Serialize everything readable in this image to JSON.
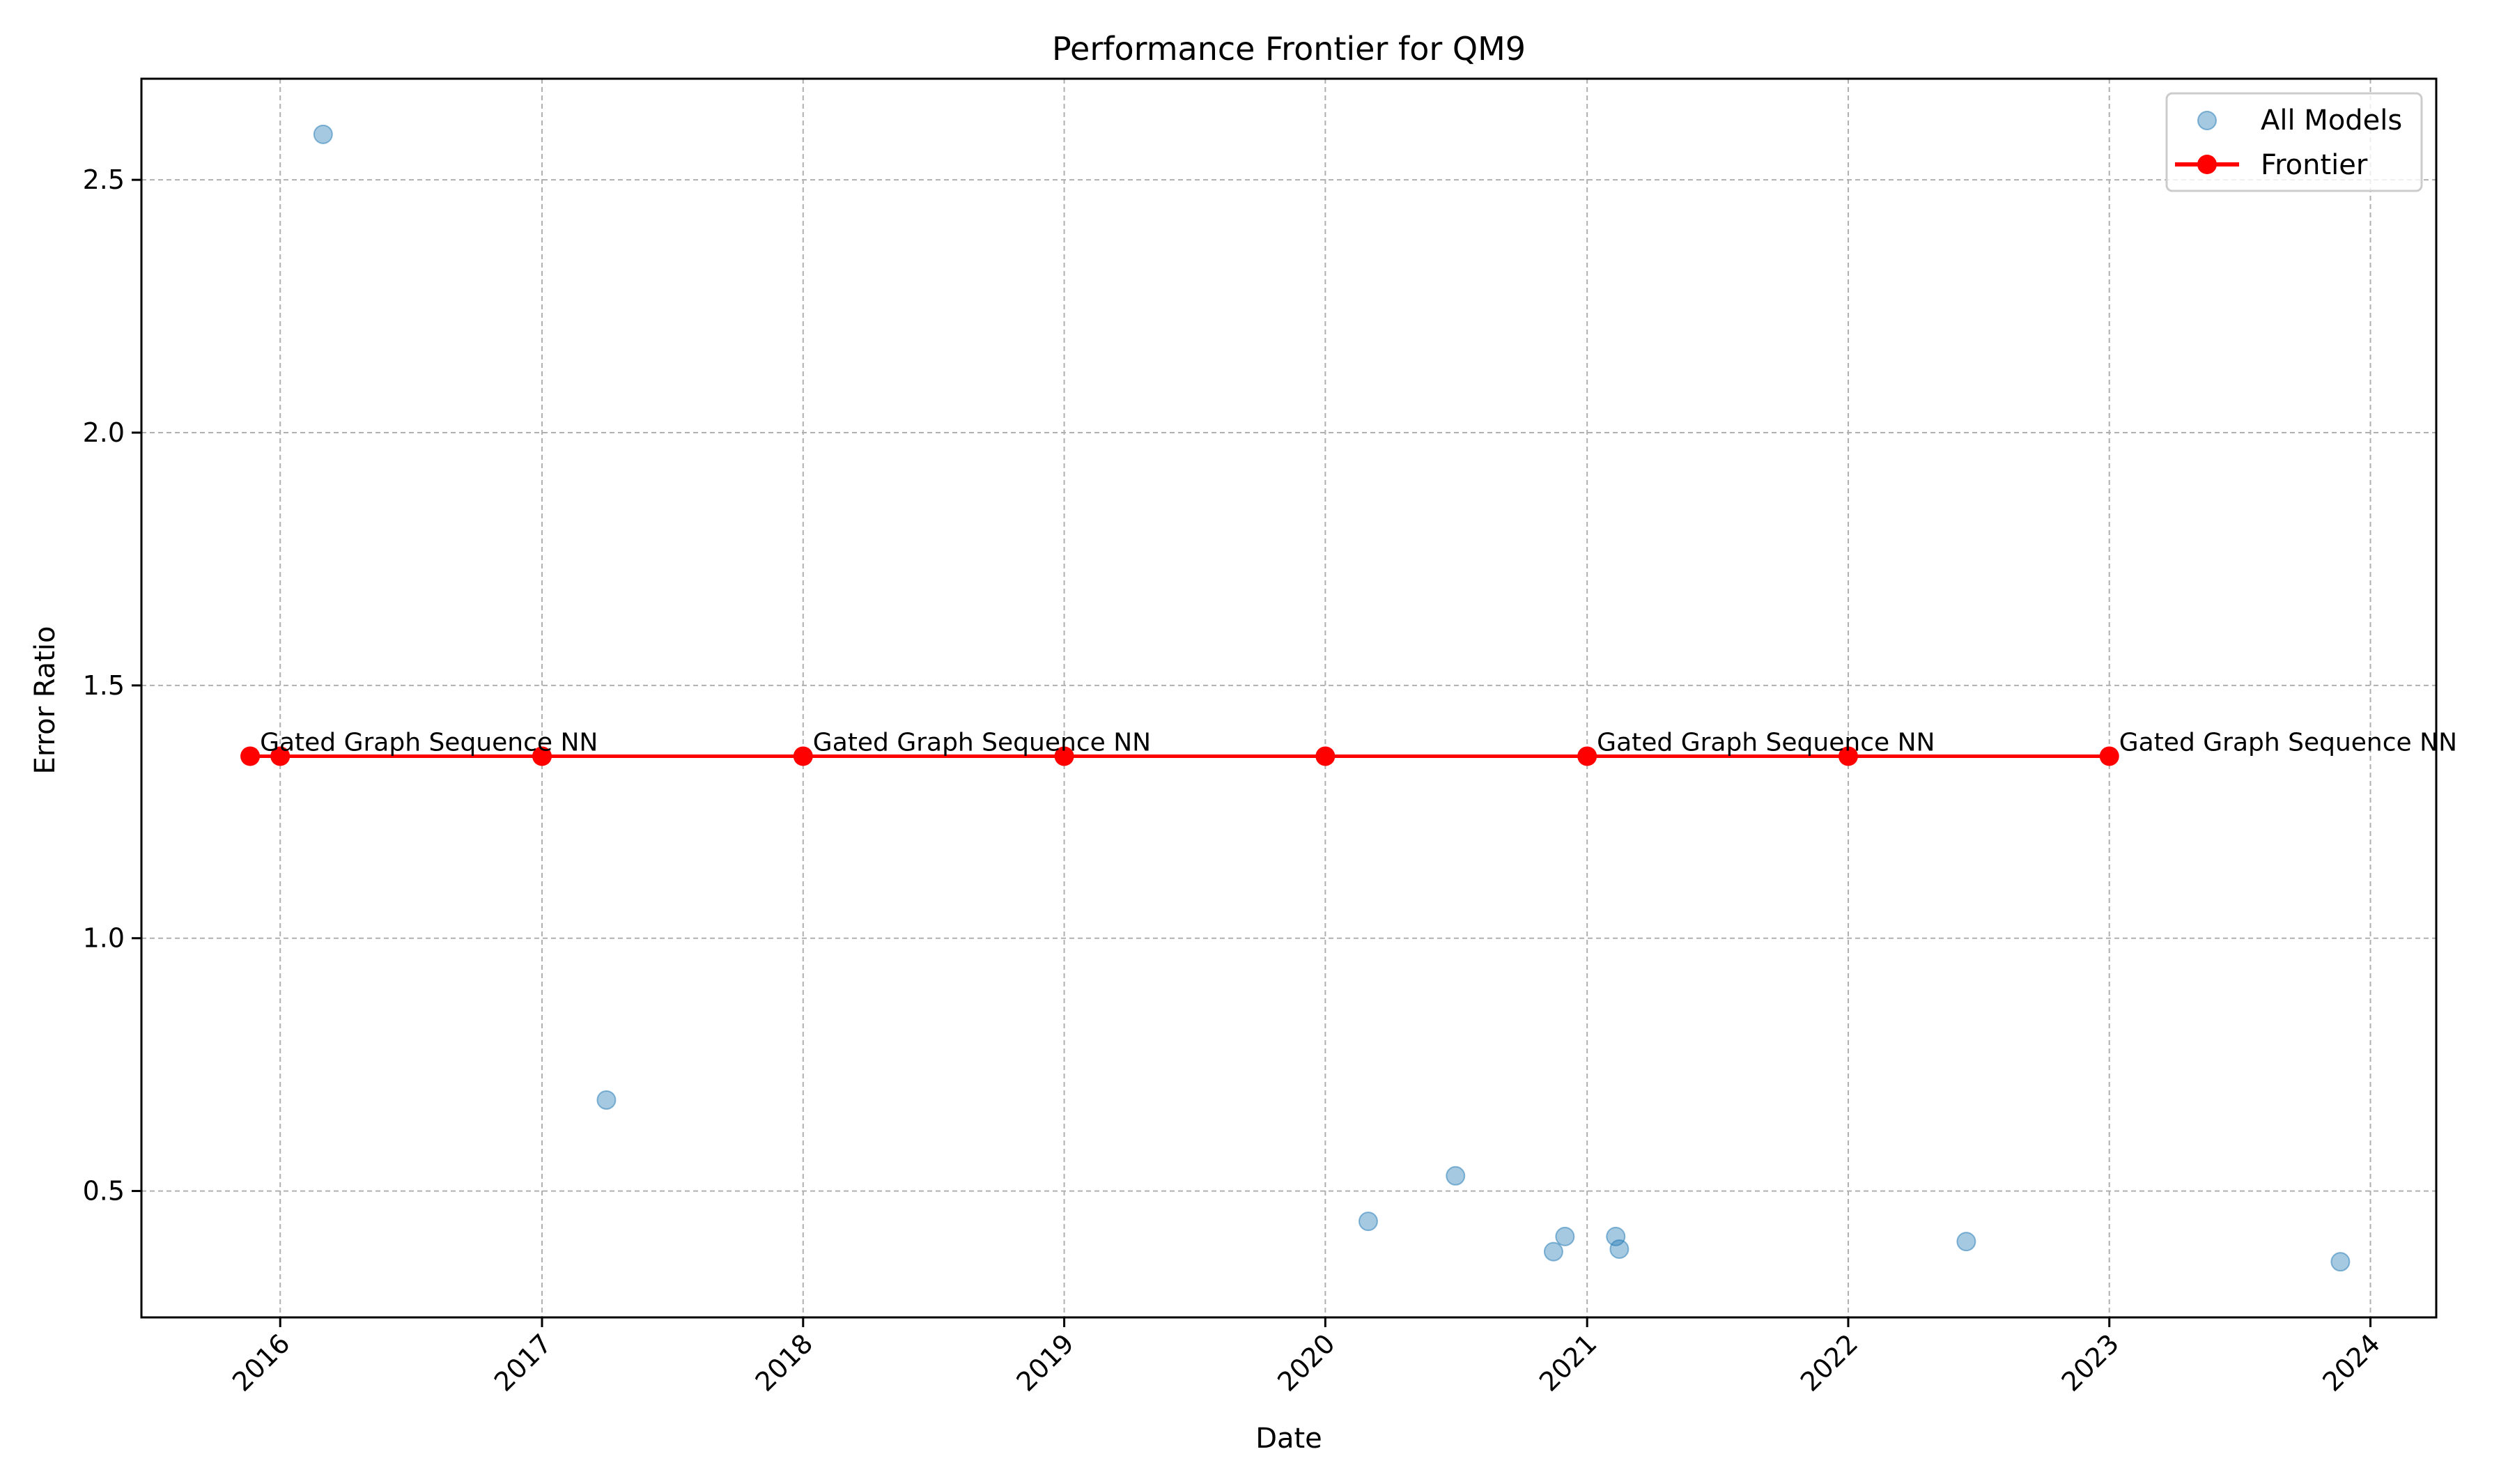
{
  "chart_data": {
    "type": "scatter",
    "title": "Performance Frontier for QM9",
    "xlabel": "Date",
    "ylabel": "Error Ratio",
    "xlim": [
      "2015-06-21",
      "2024-04-02"
    ],
    "ylim": [
      0.25,
      2.7
    ],
    "grid": true,
    "legend_position": "top-right",
    "x_ticks": [
      "2016",
      "2017",
      "2018",
      "2019",
      "2020",
      "2021",
      "2022",
      "2023",
      "2024"
    ],
    "y_ticks": [
      "0.5",
      "1.0",
      "1.5",
      "2.0",
      "2.5"
    ],
    "series": [
      {
        "name": "All Models",
        "kind": "scatter",
        "color": "#1f77b4",
        "points": [
          {
            "x": "2016-03-01",
            "y": 2.59
          },
          {
            "x": "2017-04-01",
            "y": 0.68
          },
          {
            "x": "2020-03-01",
            "y": 0.44
          },
          {
            "x": "2020-07-01",
            "y": 0.53
          },
          {
            "x": "2020-11-15",
            "y": 0.38
          },
          {
            "x": "2020-12-01",
            "y": 0.41
          },
          {
            "x": "2021-02-10",
            "y": 0.41
          },
          {
            "x": "2021-02-15",
            "y": 0.385
          },
          {
            "x": "2022-06-15",
            "y": 0.4
          },
          {
            "x": "2023-11-20",
            "y": 0.36
          }
        ]
      },
      {
        "name": "Frontier",
        "kind": "line",
        "color": "#ff0000",
        "points": [
          {
            "x": "2015-11-20",
            "y": 1.36
          },
          {
            "x": "2016-01-01",
            "y": 1.36
          },
          {
            "x": "2017-01-01",
            "y": 1.36
          },
          {
            "x": "2018-01-01",
            "y": 1.36
          },
          {
            "x": "2019-01-01",
            "y": 1.36
          },
          {
            "x": "2020-01-01",
            "y": 1.36
          },
          {
            "x": "2021-01-01",
            "y": 1.36
          },
          {
            "x": "2022-01-01",
            "y": 1.36
          },
          {
            "x": "2023-01-01",
            "y": 1.36
          }
        ]
      }
    ],
    "annotations": [
      {
        "text": "Gated Graph Sequence NN",
        "x": "2015-11-20",
        "y": 1.36
      },
      {
        "text": "Gated Graph Sequence NN",
        "x": "2018-01-01",
        "y": 1.36
      },
      {
        "text": "Gated Graph Sequence NN",
        "x": "2021-01-01",
        "y": 1.36
      },
      {
        "text": "Gated Graph Sequence NN",
        "x": "2023-01-01",
        "y": 1.36
      }
    ]
  }
}
